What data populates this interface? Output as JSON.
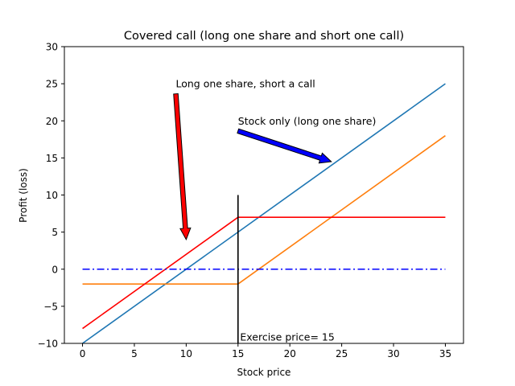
{
  "chart_data": {
    "type": "line",
    "title": "Covered call (long one share and short one call)",
    "xlabel": "Stock price",
    "ylabel": "Profit (loss)",
    "xlim": [
      -1.75,
      36.75
    ],
    "ylim": [
      -10,
      30
    ],
    "xticks": [
      0,
      5,
      10,
      15,
      20,
      25,
      30,
      35
    ],
    "yticks": [
      -10,
      -5,
      0,
      5,
      10,
      15,
      20,
      25,
      30
    ],
    "grid": false,
    "series": [
      {
        "color": "#1f77b4",
        "style": "solid",
        "x": [
          0,
          35
        ],
        "y": [
          -10,
          25
        ]
      },
      {
        "color": "#ff7f0e",
        "style": "solid",
        "x": [
          0,
          15,
          35
        ],
        "y": [
          -2,
          -2,
          18
        ]
      },
      {
        "color": "#ff0000",
        "style": "solid",
        "x": [
          0,
          15,
          35
        ],
        "y": [
          -8,
          7,
          7
        ]
      },
      {
        "color": "#0000ff",
        "style": "dashdot",
        "x": [
          0,
          35
        ],
        "y": [
          0,
          0
        ]
      }
    ],
    "vlines": [
      {
        "x": 15,
        "y": [
          -10,
          10
        ],
        "color": "#000000"
      }
    ],
    "annotations": [
      {
        "text": "Long one share, short a call",
        "text_x": 9,
        "text_y": 24.5,
        "arrow_to": [
          10,
          4
        ],
        "arrow_color": "#ff0000"
      },
      {
        "text": "Stock only (long one share)",
        "text_x": 15,
        "text_y": 19.5,
        "arrow_to": [
          24,
          14.5
        ],
        "arrow_color": "#0000ff"
      },
      {
        "text": "Exercise price= 15",
        "text_x": 15.2,
        "text_y": -9.6,
        "arrow_to": null,
        "arrow_color": null
      }
    ]
  }
}
